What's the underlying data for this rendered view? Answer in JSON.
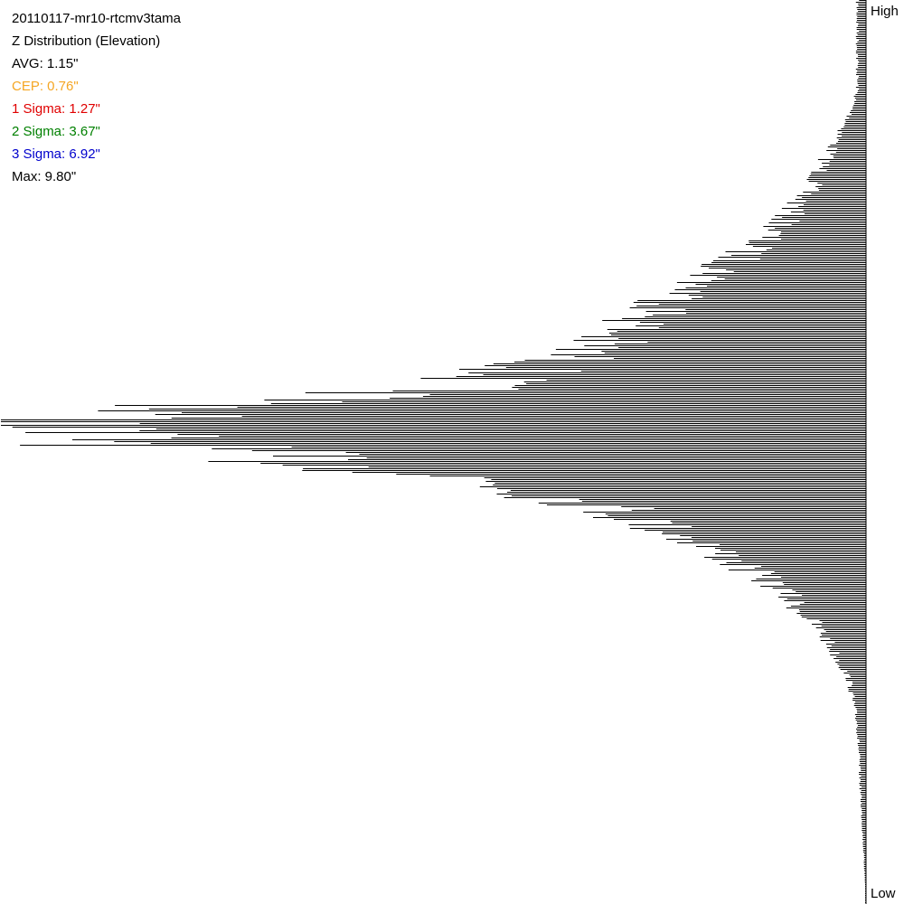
{
  "title": "20110117-mr10-rtcmv3tama",
  "subtitle": "Z Distribution (Elevation)",
  "stats": {
    "avg": {
      "label": "AVG: 1.15\"",
      "value": 1.15,
      "color": "#000000"
    },
    "cep": {
      "label": "CEP: 0.76\"",
      "value": 0.76,
      "color": "#f5a623"
    },
    "sigma1": {
      "label": "1 Sigma: 1.27\"",
      "value": 1.27,
      "color": "#e00000"
    },
    "sigma2": {
      "label": "2 Sigma: 3.67\"",
      "value": 3.67,
      "color": "#008000"
    },
    "sigma3": {
      "label": "3 Sigma: 6.92\"",
      "value": 6.92,
      "color": "#0000cc"
    },
    "max": {
      "label": "Max: 9.80\"",
      "value": 9.8,
      "color": "#000000"
    }
  },
  "axis": {
    "high_label": "High",
    "low_label": "Low"
  },
  "chart_data": {
    "type": "bar",
    "orientation": "horizontal",
    "bar_direction": "right-to-left",
    "title": "20110117-mr10-rtcmv3tama",
    "subtitle": "Z Distribution (Elevation)",
    "ylabel_top": "High",
    "ylabel_bottom": "Low",
    "bar_color": "#000000",
    "grid": false,
    "relative_counts_profile": [
      {
        "position": 0.0,
        "count": 0.01
      },
      {
        "position": 0.1,
        "count": 0.01
      },
      {
        "position": 0.13,
        "count": 0.02
      },
      {
        "position": 0.2,
        "count": 0.06
      },
      {
        "position": 0.25,
        "count": 0.1
      },
      {
        "position": 0.3,
        "count": 0.17
      },
      {
        "position": 0.35,
        "count": 0.25
      },
      {
        "position": 0.4,
        "count": 0.36
      },
      {
        "position": 0.43,
        "count": 0.5
      },
      {
        "position": 0.45,
        "count": 0.75
      },
      {
        "position": 0.47,
        "count": 1.0
      },
      {
        "position": 0.5,
        "count": 0.75
      },
      {
        "position": 0.53,
        "count": 0.45
      },
      {
        "position": 0.56,
        "count": 0.3
      },
      {
        "position": 0.6,
        "count": 0.19
      },
      {
        "position": 0.65,
        "count": 0.1
      },
      {
        "position": 0.7,
        "count": 0.05
      },
      {
        "position": 0.75,
        "count": 0.02
      },
      {
        "position": 0.8,
        "count": 0.01
      },
      {
        "position": 0.9,
        "count": 0.005
      },
      {
        "position": 1.0,
        "count": 0.0
      }
    ]
  }
}
